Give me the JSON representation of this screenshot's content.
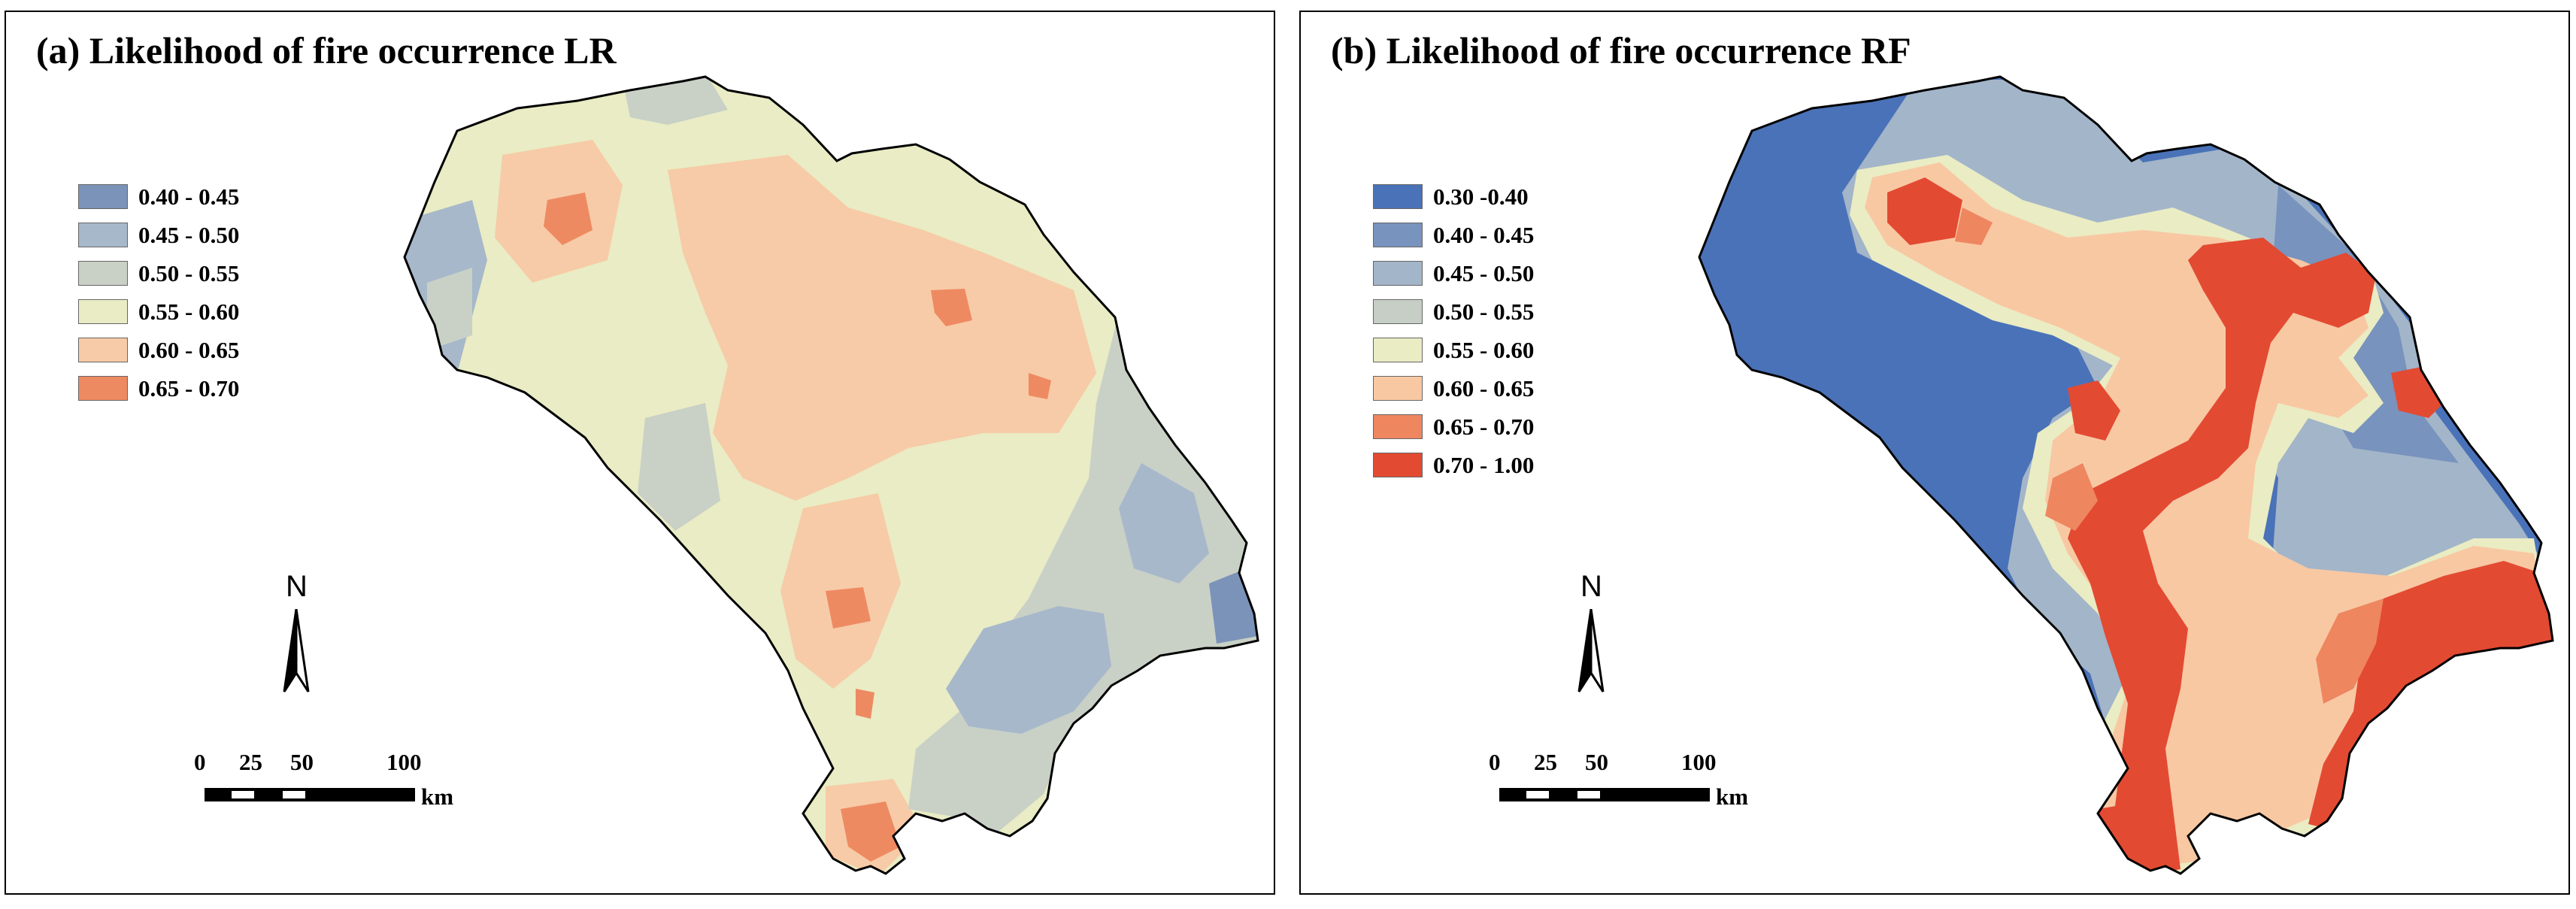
{
  "panels": [
    {
      "title": "(a) Likelihood of fire occurrence LR",
      "legend": [
        {
          "label": "0.40 - 0.45",
          "color": "#7b93b8"
        },
        {
          "label": "0.45 - 0.50",
          "color": "#a7b8cb"
        },
        {
          "label": "0.50 - 0.55",
          "color": "#c9d0c6"
        },
        {
          "label": "0.55 - 0.60",
          "color": "#e9ecc4"
        },
        {
          "label": "0.60 - 0.65",
          "color": "#f7cba7"
        },
        {
          "label": "0.65 - 0.70",
          "color": "#ee8a62"
        }
      ],
      "north_label": "N",
      "scale": {
        "ticks": [
          "0",
          "25",
          "50",
          "100"
        ],
        "unit": "km"
      }
    },
    {
      "title": "(b) Likelihood of fire occurrence RF",
      "legend": [
        {
          "label": "0.30 -0.40",
          "color": "#4a72b8"
        },
        {
          "label": "0.40 - 0.45",
          "color": "#7893bd"
        },
        {
          "label": "0.45 - 0.50",
          "color": "#a3b5c9"
        },
        {
          "label": "0.50 - 0.55",
          "color": "#c6cec6"
        },
        {
          "label": "0.55 - 0.60",
          "color": "#eaecc3"
        },
        {
          "label": "0.60 - 0.65",
          "color": "#f8c8a3"
        },
        {
          "label": "0.65 - 0.70",
          "color": "#ee8660"
        },
        {
          "label": "0.70 - 1.00",
          "color": "#e34a32"
        }
      ],
      "north_label": "N",
      "scale": {
        "ticks": [
          "0",
          "25",
          "50",
          "100"
        ],
        "unit": "km"
      }
    }
  ]
}
